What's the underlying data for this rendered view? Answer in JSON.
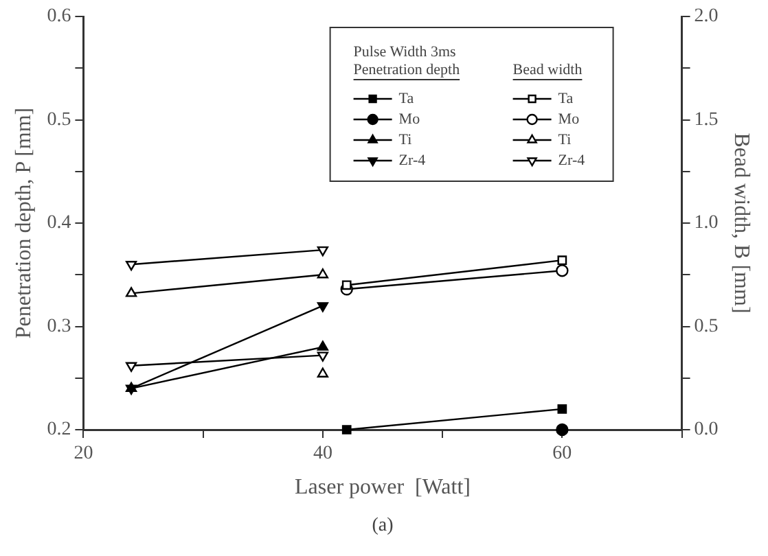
{
  "chart_data": {
    "type": "line",
    "xlabel": "Laser power  [Watt]",
    "ylabel": "Penetration depth, P [mm]",
    "y2label": "Bead width, B [mm]",
    "legend_title": "Pulse Width 3ms",
    "legend": "top right",
    "grid": false,
    "annotations": [
      "Penetration depth",
      "Bead width",
      "(a)"
    ],
    "xlim": [
      20,
      70
    ],
    "xticks": [
      20,
      {
        "value": 30,
        "label": null
      },
      40,
      {
        "value": 50,
        "label": null
      },
      60,
      {
        "value": 70,
        "label": null
      }
    ],
    "ylim": [
      0.2,
      0.6
    ],
    "yticks": [
      {
        "value": 0.2,
        "label": "0.2"
      },
      {
        "value": 0.25,
        "label": null
      },
      {
        "value": 0.3,
        "label": "0.3"
      },
      {
        "value": 0.35,
        "label": null
      },
      {
        "value": 0.4,
        "label": "0.4"
      },
      {
        "value": 0.45,
        "label": null
      },
      {
        "value": 0.5,
        "label": "0.5"
      },
      {
        "value": 0.55,
        "label": null
      },
      {
        "value": 0.6,
        "label": "0.6"
      }
    ],
    "y2lim": [
      0,
      2
    ],
    "y2ticks": [
      {
        "value": 0,
        "label": "0.0"
      },
      {
        "value": 0.25,
        "label": null
      },
      {
        "value": 0.5,
        "label": "0.5"
      },
      {
        "value": 0.75,
        "label": null
      },
      {
        "value": 1,
        "label": "1.0"
      },
      {
        "value": 1.25,
        "label": null
      },
      {
        "value": 1.5,
        "label": "1.5"
      },
      {
        "value": 1.75,
        "label": null
      },
      {
        "value": 2,
        "label": "2.0"
      }
    ],
    "series": [
      {
        "name": "Ta",
        "color": "#000000",
        "marker": "square",
        "x": [
          42,
          60
        ],
        "values": [
          0.2,
          0.22
        ]
      },
      {
        "name": "Mo",
        "color": "#000000",
        "marker": "circle",
        "x": [
          60
        ],
        "values": [
          0.2
        ]
      },
      {
        "name": "Ti",
        "color": "#000000",
        "marker": "triangle",
        "x": [
          24,
          40
        ],
        "values": [
          0.24,
          0.28
        ]
      },
      {
        "name": "Zr-4",
        "color": "#000000",
        "marker": "triangle-down",
        "x": [
          24,
          40
        ],
        "values": [
          0.24,
          0.32
        ]
      },
      {
        "name": "Ta",
        "color": "#000000",
        "marker": "square",
        "axis": "y2",
        "x": [
          42,
          60
        ],
        "values": [
          0.7,
          0.82
        ]
      },
      {
        "name": "Mo",
        "color": "#000000",
        "marker": "circle",
        "axis": "y2",
        "x": [
          42,
          60
        ],
        "values": [
          0.68,
          0.77
        ]
      },
      {
        "name": "Ti",
        "color": "#000000",
        "marker": "triangle",
        "axis": "y2",
        "x": [
          24,
          40
        ],
        "values": [
          0.66,
          0.75
        ]
      },
      {
        "name": "Zr-4",
        "color": "#000000",
        "marker": "triangle-down",
        "axis": "y2",
        "x": [
          24,
          40
        ],
        "values": [
          0.8,
          0.87
        ]
      },
      {
        "color": "#000000",
        "marker": "triangle-down",
        "axis": "y2",
        "x": [
          24,
          40
        ],
        "values": [
          0.31,
          0.36
        ]
      },
      {
        "color": "#000000",
        "marker": "triangle",
        "axis": "y2",
        "x": [
          40
        ],
        "values": [
          0.27
        ]
      }
    ]
  }
}
